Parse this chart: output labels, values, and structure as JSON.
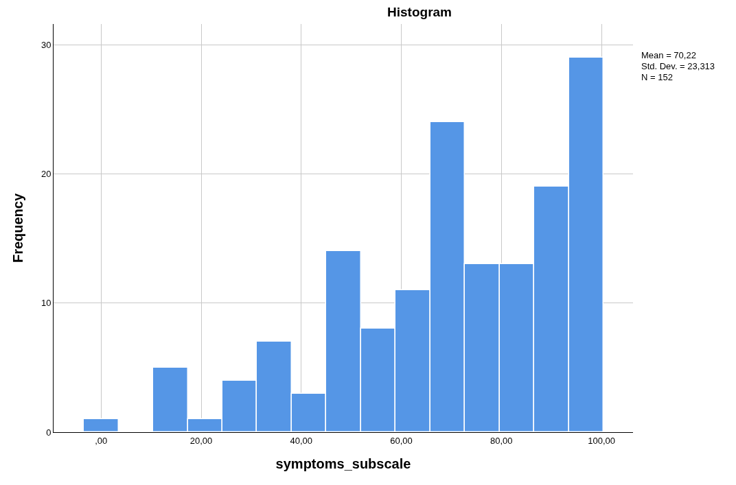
{
  "chart_data": {
    "type": "histogram",
    "title": "Histogram",
    "xlabel": "symptoms_subscale",
    "ylabel": "Frequency",
    "bins": [
      -3.45,
      3.475,
      10.4,
      17.325,
      24.25,
      31.175,
      38.1,
      45.025,
      51.95,
      58.875,
      65.8,
      72.725,
      79.65,
      86.575,
      93.5,
      100.425
    ],
    "values": [
      1,
      0,
      5,
      1,
      4,
      7,
      3,
      14,
      8,
      11,
      24,
      13,
      13,
      19,
      29
    ],
    "color": "#5596e6",
    "xlim": [
      -9.5,
      106.3
    ],
    "ylim": [
      0,
      31.6
    ],
    "xticks": [
      {
        "value": 0,
        "label": ",00"
      },
      {
        "value": 20,
        "label": "20,00"
      },
      {
        "value": 40,
        "label": "40,00"
      },
      {
        "value": 60,
        "label": "60,00"
      },
      {
        "value": 80,
        "label": "80,00"
      },
      {
        "value": 100,
        "label": "100,00"
      }
    ],
    "yticks": [
      0,
      10,
      20,
      30
    ],
    "grid": true,
    "annotations": [
      "Mean = 70,22",
      "Std. Dev. = 23,313",
      "N = 152"
    ]
  }
}
